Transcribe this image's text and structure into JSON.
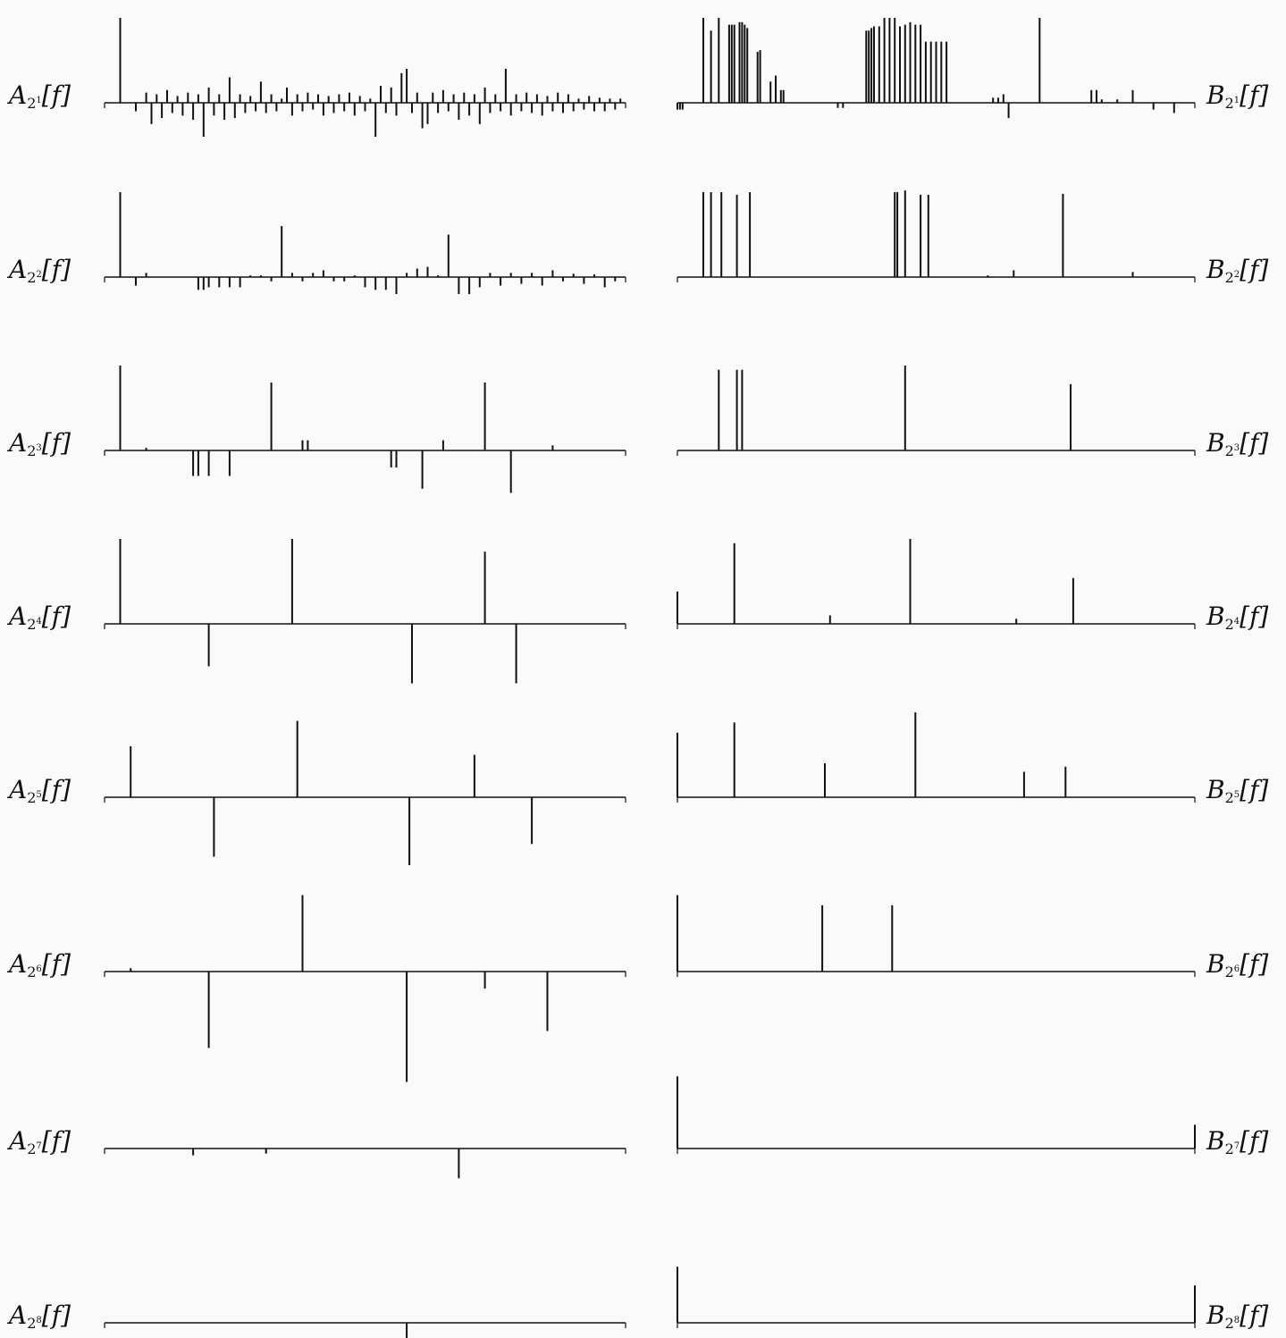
{
  "chart_data": [
    {
      "panel": "A",
      "level": 1,
      "type": "bar",
      "label": {
        "letter": "A",
        "base": "2",
        "exp": "1",
        "arg": "[f]"
      },
      "x": [
        3,
        6,
        8,
        9,
        10,
        11,
        12,
        13,
        14,
        15,
        16,
        17,
        18,
        19,
        20,
        21,
        22,
        23,
        24,
        25,
        26,
        27,
        28,
        29,
        30,
        31,
        32,
        33,
        34,
        35,
        36,
        37,
        38,
        39,
        40,
        41,
        42,
        43,
        44,
        45,
        46,
        47,
        48,
        49,
        50,
        51,
        52,
        53,
        54,
        55,
        56,
        57,
        58,
        59,
        60,
        61,
        62,
        63,
        64,
        65,
        66,
        67,
        68,
        69,
        70,
        71,
        72,
        73,
        74,
        75,
        76,
        77,
        78,
        79,
        80,
        81,
        82,
        83,
        84,
        85,
        86,
        87,
        88,
        89,
        90,
        91,
        92,
        93,
        94,
        95,
        96,
        97,
        98,
        99
      ],
      "values": [
        1.0,
        -0.1,
        0.12,
        -0.25,
        0.1,
        -0.18,
        0.15,
        -0.12,
        0.08,
        -0.15,
        0.12,
        -0.2,
        0.1,
        -0.4,
        0.18,
        -0.15,
        0.1,
        -0.2,
        0.3,
        -0.18,
        0.1,
        -0.12,
        0.08,
        -0.1,
        0.25,
        -0.12,
        0.1,
        -0.1,
        0.05,
        0.18,
        -0.15,
        0.1,
        -0.1,
        0.12,
        -0.08,
        0.1,
        -0.15,
        0.08,
        -0.12,
        0.1,
        -0.1,
        0.12,
        -0.15,
        0.08,
        -0.1,
        0.05,
        -0.4,
        0.2,
        -0.12,
        0.18,
        -0.15,
        0.35,
        0.4,
        -0.12,
        0.12,
        -0.3,
        -0.25,
        0.12,
        -0.12,
        0.15,
        -0.1,
        0.1,
        -0.2,
        0.12,
        -0.15,
        0.1,
        -0.25,
        0.18,
        -0.12,
        0.1,
        -0.1,
        0.4,
        -0.15,
        0.1,
        -0.1,
        0.12,
        -0.12,
        0.1,
        -0.15,
        0.08,
        -0.1,
        0.12,
        -0.12,
        0.1,
        -0.1,
        0.05,
        -0.08,
        0.08,
        -0.1,
        0.06,
        -0.1,
        0.05,
        -0.08,
        0.05
      ],
      "ylim": [
        -1.1,
        1.1
      ]
    },
    {
      "panel": "B",
      "level": 1,
      "type": "bar",
      "label": {
        "letter": "B",
        "base": "2",
        "exp": "1",
        "arg": "[f]"
      },
      "x": [
        0,
        0.5,
        1,
        5,
        6.5,
        8,
        10,
        10.5,
        11,
        12,
        12.5,
        13,
        13.5,
        15.5,
        16,
        18,
        19,
        20,
        20.5,
        31,
        32,
        36.5,
        37,
        37.5,
        38,
        39,
        40,
        41,
        42,
        43,
        44,
        45,
        46,
        47,
        48,
        49,
        50,
        51,
        52,
        61,
        62,
        63,
        64,
        70,
        80,
        81,
        82,
        85,
        88,
        92,
        96
      ],
      "values": [
        -0.08,
        -0.08,
        -0.08,
        1.0,
        0.85,
        1.0,
        0.92,
        0.92,
        0.92,
        0.95,
        0.95,
        0.92,
        0.88,
        0.6,
        0.62,
        0.25,
        0.32,
        0.15,
        0.15,
        -0.06,
        -0.06,
        0.85,
        0.85,
        0.88,
        0.9,
        0.9,
        1.0,
        1.0,
        1.0,
        0.9,
        0.92,
        0.95,
        0.92,
        0.92,
        0.72,
        0.72,
        0.72,
        0.72,
        0.72,
        0.06,
        0.06,
        0.1,
        -0.18,
        1.0,
        0.15,
        0.15,
        0.04,
        0.04,
        0.15,
        -0.08,
        -0.12
      ],
      "ylim": [
        -1.1,
        1.1
      ]
    },
    {
      "panel": "A",
      "level": 2,
      "type": "bar",
      "label": {
        "letter": "A",
        "base": "2",
        "exp": "2",
        "arg": "[f]"
      },
      "x": [
        3,
        6,
        8,
        18,
        19,
        20,
        22,
        24,
        26,
        28,
        30,
        32,
        34,
        36,
        38,
        40,
        42,
        44,
        46,
        48,
        50,
        52,
        54,
        56,
        58,
        60,
        62,
        64,
        66,
        68,
        70,
        72,
        74,
        76,
        78,
        80,
        82,
        84,
        86,
        88,
        90,
        92,
        94,
        96,
        98
      ],
      "values": [
        1.0,
        -0.1,
        0.05,
        -0.15,
        -0.15,
        -0.12,
        -0.12,
        -0.12,
        -0.12,
        0.02,
        0.02,
        -0.05,
        0.6,
        0.05,
        -0.05,
        0.05,
        0.08,
        -0.05,
        -0.05,
        0.02,
        -0.12,
        -0.15,
        -0.15,
        -0.2,
        0.05,
        0.1,
        0.12,
        0.02,
        0.5,
        -0.2,
        -0.2,
        -0.12,
        0.05,
        -0.1,
        0.05,
        -0.08,
        0.05,
        -0.1,
        0.08,
        -0.05,
        0.04,
        -0.08,
        0.03,
        -0.12,
        -0.05
      ],
      "ylim": [
        -1.1,
        1.1
      ]
    },
    {
      "panel": "B",
      "level": 2,
      "type": "bar",
      "label": {
        "letter": "B",
        "base": "2",
        "exp": "2",
        "arg": "[f]"
      },
      "x": [
        5,
        6.5,
        8.5,
        11.5,
        14,
        42,
        42.5,
        44,
        47,
        48.5,
        60,
        65,
        74.5,
        88
      ],
      "values": [
        1.0,
        1.0,
        1.0,
        0.97,
        1.0,
        1.0,
        1.0,
        1.02,
        0.97,
        0.97,
        0.02,
        0.08,
        0.98,
        0.06
      ],
      "ylim": [
        -1.1,
        1.1
      ]
    },
    {
      "panel": "A",
      "level": 3,
      "type": "bar",
      "label": {
        "letter": "A",
        "base": "2",
        "exp": "3",
        "arg": "[f]"
      },
      "x": [
        3,
        8,
        17,
        18,
        20,
        24,
        32,
        38,
        39,
        55,
        56,
        61,
        65,
        73,
        78,
        86
      ],
      "values": [
        1.0,
        0.03,
        -0.3,
        -0.3,
        -0.3,
        -0.3,
        0.8,
        0.12,
        0.12,
        -0.2,
        -0.2,
        -0.45,
        0.12,
        0.8,
        -0.5,
        0.06
      ],
      "ylim": [
        -1.1,
        1.1
      ]
    },
    {
      "panel": "B",
      "level": 3,
      "type": "bar",
      "label": {
        "letter": "B",
        "base": "2",
        "exp": "3",
        "arg": "[f]"
      },
      "x": [
        8,
        11.5,
        12.5,
        44,
        76
      ],
      "values": [
        0.95,
        0.95,
        0.95,
        1.0,
        0.78
      ],
      "ylim": [
        -1.1,
        1.1
      ]
    },
    {
      "panel": "A",
      "level": 4,
      "type": "bar",
      "label": {
        "letter": "A",
        "base": "2",
        "exp": "4",
        "arg": "[f]"
      },
      "x": [
        3,
        20,
        36,
        59,
        73,
        79
      ],
      "values": [
        1.0,
        -0.5,
        1.0,
        -0.7,
        0.85,
        -0.7
      ],
      "ylim": [
        -1.1,
        1.1
      ]
    },
    {
      "panel": "B",
      "level": 4,
      "type": "bar",
      "label": {
        "letter": "B",
        "base": "2",
        "exp": "4",
        "arg": "[f]"
      },
      "x": [
        0,
        11,
        29.5,
        45,
        65.5,
        76.5
      ],
      "values": [
        0.38,
        0.95,
        0.1,
        1.0,
        0.06,
        0.54
      ],
      "ylim": [
        -1.1,
        1.1
      ]
    },
    {
      "panel": "A",
      "level": 5,
      "type": "bar",
      "label": {
        "letter": "A",
        "base": "2",
        "exp": "5",
        "arg": "[f]"
      },
      "x": [
        5,
        21,
        37,
        58.5,
        71,
        82
      ],
      "values": [
        0.6,
        -0.7,
        0.9,
        -0.8,
        0.5,
        -0.55
      ],
      "ylim": [
        -1.1,
        1.1
      ]
    },
    {
      "panel": "B",
      "level": 5,
      "type": "bar",
      "label": {
        "letter": "B",
        "base": "2",
        "exp": "5",
        "arg": "[f]"
      },
      "x": [
        0,
        11,
        28.5,
        46,
        67,
        75
      ],
      "values": [
        0.76,
        0.88,
        0.4,
        1.0,
        0.3,
        0.36
      ],
      "ylim": [
        -1.1,
        1.1
      ]
    },
    {
      "panel": "A",
      "level": 6,
      "type": "bar",
      "label": {
        "letter": "A",
        "base": "2",
        "exp": "6",
        "arg": "[f]"
      },
      "x": [
        5,
        20,
        38,
        58,
        73,
        85
      ],
      "values": [
        0.04,
        -0.9,
        0.9,
        -1.3,
        -0.2,
        -0.7
      ],
      "ylim": [
        -1.4,
        1.1
      ]
    },
    {
      "panel": "B",
      "level": 6,
      "type": "bar",
      "label": {
        "letter": "B",
        "base": "2",
        "exp": "6",
        "arg": "[f]"
      },
      "x": [
        0,
        28,
        41.5
      ],
      "values": [
        0.9,
        0.78,
        0.78
      ],
      "ylim": [
        -1.1,
        1.1
      ]
    },
    {
      "panel": "A",
      "level": 7,
      "type": "bar",
      "label": {
        "letter": "A",
        "base": "2",
        "exp": "7",
        "arg": "[f]"
      },
      "x": [
        17,
        31,
        68
      ],
      "values": [
        -0.08,
        -0.06,
        -0.35
      ],
      "ylim": [
        -1.1,
        1.1
      ]
    },
    {
      "panel": "B",
      "level": 7,
      "type": "bar",
      "label": {
        "letter": "B",
        "base": "2",
        "exp": "7",
        "arg": "[f]"
      },
      "x": [
        0,
        100
      ],
      "values": [
        0.85,
        0.28
      ],
      "ylim": [
        -1.1,
        1.1
      ]
    },
    {
      "panel": "A",
      "level": 8,
      "type": "bar",
      "label": {
        "letter": "A",
        "base": "2",
        "exp": "8",
        "arg": "[f]"
      },
      "x": [
        58
      ],
      "values": [
        -0.3
      ],
      "ylim": [
        -1.1,
        1.1
      ]
    },
    {
      "panel": "B",
      "level": 8,
      "type": "bar",
      "label": {
        "letter": "B",
        "base": "2",
        "exp": "8",
        "arg": "[f]"
      },
      "x": [
        0,
        100
      ],
      "values": [
        0.66,
        0.44
      ],
      "ylim": [
        -1.1,
        1.1
      ]
    }
  ]
}
